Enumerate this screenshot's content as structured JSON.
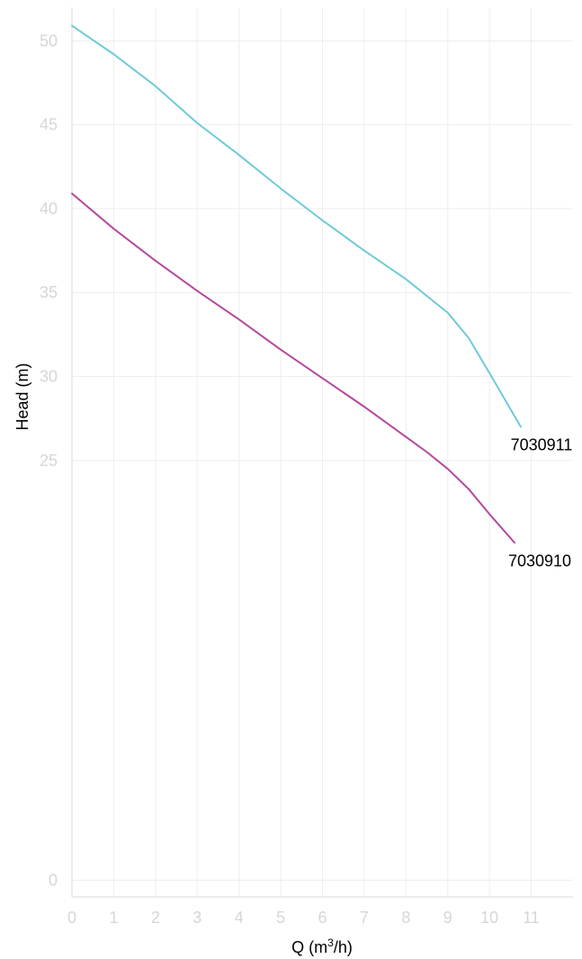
{
  "chart_data": {
    "type": "line",
    "title": "",
    "xlabel": "Q (m",
    "xlabel_superscript": "3",
    "xlabel_suffix": "/h)",
    "ylabel": "Head (m)",
    "xlim": [
      0,
      12
    ],
    "ylim": [
      -1,
      52
    ],
    "x_ticks": [
      0,
      1,
      2,
      3,
      4,
      5,
      6,
      7,
      8,
      9,
      10,
      11
    ],
    "y_ticks": [
      0,
      25,
      30,
      35,
      40,
      45,
      50
    ],
    "y_tick_labels": [
      "0",
      "25",
      "30",
      "35",
      "40",
      "45",
      "50"
    ],
    "grid": true,
    "series": [
      {
        "name": "7030911",
        "color": "#6fcbd6",
        "x": [
          0,
          1,
          2,
          3,
          4,
          5,
          6,
          7,
          8,
          9,
          9.5,
          10,
          10.75
        ],
        "y": [
          50.9,
          49.2,
          47.3,
          45.1,
          43.2,
          41.2,
          39.3,
          37.5,
          35.8,
          33.8,
          32.3,
          30.2,
          27.0
        ]
      },
      {
        "name": "7030910",
        "color": "#b5489d",
        "x": [
          0,
          1,
          2,
          3,
          4,
          5,
          6,
          7,
          8,
          8.5,
          9,
          9.5,
          10,
          10.6
        ],
        "y": [
          40.9,
          38.8,
          36.9,
          35.1,
          33.4,
          31.6,
          29.9,
          28.2,
          26.4,
          25.5,
          24.5,
          23.3,
          21.8,
          20.1
        ]
      }
    ]
  }
}
